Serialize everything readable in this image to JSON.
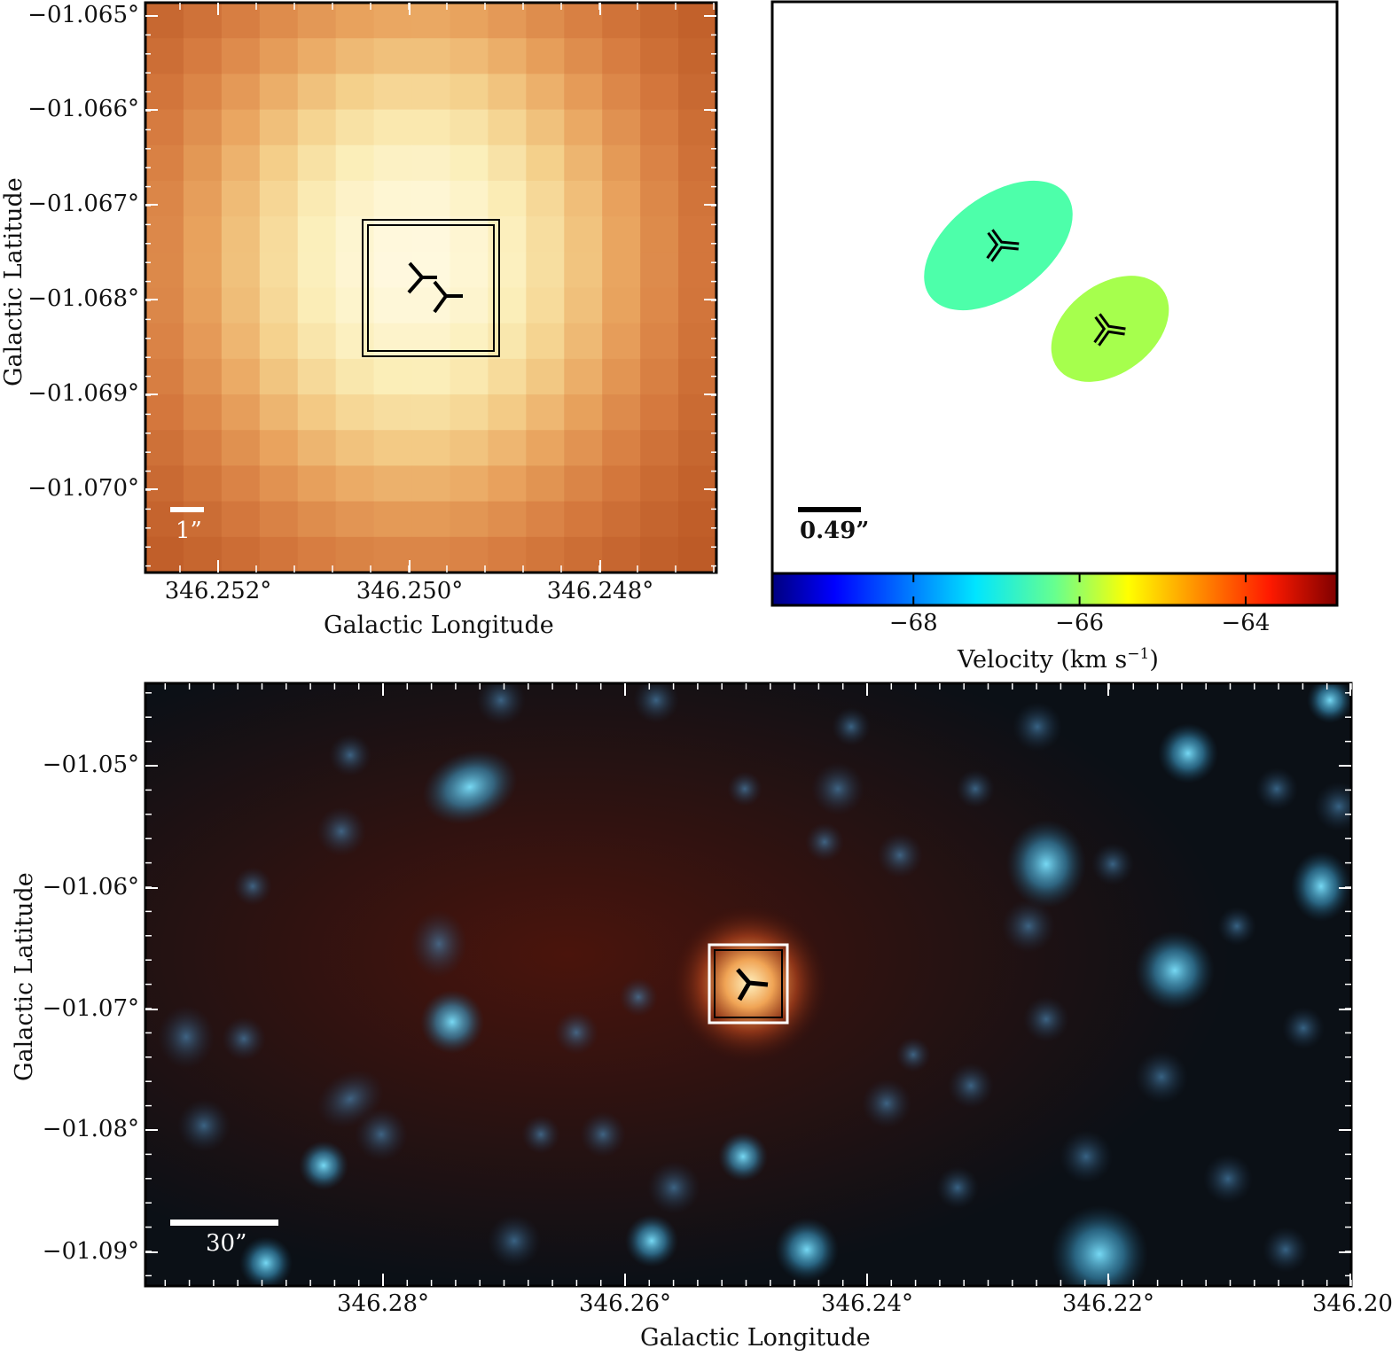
{
  "top_left": {
    "y_ticks": [
      "−01.065°",
      "−01.066°",
      "−01.067°",
      "−01.068°",
      "−01.069°",
      "−01.070°"
    ],
    "x_ticks": [
      "346.252°",
      "346.250°",
      "346.248°"
    ],
    "xlabel": "Galactic Longitude",
    "ylabel": "Galactic Latitude",
    "scale_bar_label": "1”",
    "colormap": [
      "#b5511f",
      "#d5793e",
      "#e9a45f",
      "#f4cf8a",
      "#fbeeb8",
      "#fff9e0"
    ]
  },
  "top_right": {
    "scale_bar_label": "0.49”",
    "colorbar": {
      "ticks": [
        "−68",
        "−66",
        "−64"
      ],
      "tick_values": [
        -68,
        -66,
        -64
      ],
      "range": [
        -69.7,
        -62.9
      ],
      "label": "Velocity (km s",
      "label_sup": "−1",
      "label_end": ")"
    },
    "ellipses": [
      {
        "velocity": -66.9,
        "color": "#4dffaa"
      },
      {
        "velocity": -65.8,
        "color": "#a6ff4d"
      }
    ]
  },
  "bottom": {
    "y_ticks": [
      "−01.05°",
      "−01.06°",
      "−01.07°",
      "−01.08°",
      "−01.09°"
    ],
    "x_ticks": [
      "346.28°",
      "346.26°",
      "346.24°",
      "346.22°",
      "346.20°"
    ],
    "xlabel": "Galactic Longitude",
    "ylabel": "Galactic Latitude",
    "scale_bar_label": "30”",
    "background_color": "#2a0c08",
    "star_color": "#4ec5ee"
  }
}
